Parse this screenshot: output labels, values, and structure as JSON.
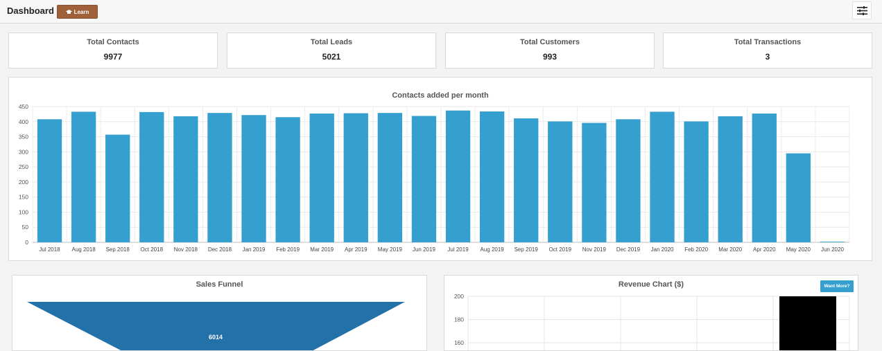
{
  "header": {
    "title": "Dashboard",
    "learn_label": "Learn",
    "learn_icon": "graduation-cap-icon",
    "menu_icon": "sliders-icon"
  },
  "stats": [
    {
      "label": "Total Contacts",
      "value": "9977"
    },
    {
      "label": "Total Leads",
      "value": "5021"
    },
    {
      "label": "Total Customers",
      "value": "993"
    },
    {
      "label": "Total Transactions",
      "value": "3"
    }
  ],
  "contacts_chart": {
    "title": "Contacts added per month"
  },
  "sales_funnel": {
    "title": "Sales Funnel",
    "first_stage_value": "6014",
    "color": "#2271a8"
  },
  "revenue": {
    "title": "Revenue Chart ($)",
    "want_more_label": "Want More?"
  },
  "chart_data": [
    {
      "type": "bar",
      "title": "Contacts added per month",
      "categories": [
        "Jul 2018",
        "Aug 2018",
        "Sep 2018",
        "Oct 2018",
        "Nov 2018",
        "Dec 2018",
        "Jan 2019",
        "Feb 2019",
        "Mar 2019",
        "Apr 2019",
        "May 2019",
        "Jun 2019",
        "Jul 2019",
        "Aug 2019",
        "Sep 2019",
        "Oct 2019",
        "Nov 2019",
        "Dec 2019",
        "Jan 2020",
        "Feb 2020",
        "Mar 2020",
        "Apr 2020",
        "May 2020",
        "Jun 2020"
      ],
      "values": [
        408,
        433,
        357,
        432,
        418,
        429,
        422,
        415,
        427,
        428,
        429,
        419,
        437,
        434,
        411,
        401,
        396,
        408,
        433,
        401,
        418,
        427,
        295,
        2
      ],
      "ylim": [
        0,
        450
      ],
      "yticks": [
        0,
        50,
        100,
        150,
        200,
        250,
        300,
        350,
        400,
        450
      ],
      "color": "#35a0cf",
      "grid": true
    },
    {
      "type": "bar",
      "title": "Revenue Chart ($)",
      "yticks_visible": [
        160,
        180,
        200
      ],
      "bar_color": "#000000",
      "grid": true
    }
  ]
}
